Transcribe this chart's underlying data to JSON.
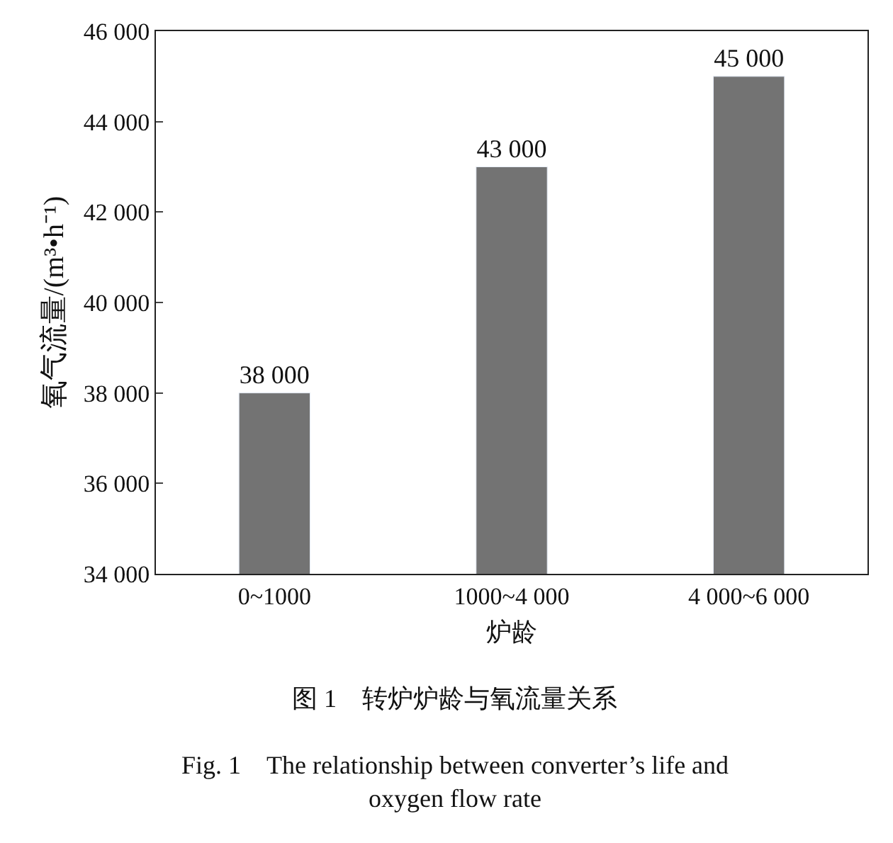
{
  "chart_data": {
    "type": "bar",
    "xlabel": "炉龄",
    "ylabel": "氧气流量/(m³•h⁻¹)",
    "categories": [
      "0~1000",
      "1000~4 000",
      "4 000~6 000"
    ],
    "values": [
      38000,
      43000,
      45000
    ],
    "color": "#737373",
    "value_labels": [
      "38 000",
      "43 000",
      "45 000"
    ],
    "ylim": [
      34000,
      46000
    ],
    "yticks": [
      {
        "value": 34000,
        "label": "34 000"
      },
      {
        "value": 36000,
        "label": "36 000"
      },
      {
        "value": 38000,
        "label": "38 000"
      },
      {
        "value": 40000,
        "label": "40 000"
      },
      {
        "value": 42000,
        "label": "42 000"
      },
      {
        "value": 44000,
        "label": "44 000"
      },
      {
        "value": 46000,
        "label": "46 000"
      }
    ],
    "annotations": [
      "图 1　转炉炉龄与氧流量关系",
      "Fig. 1　The relationship between converter’s life and oxygen flow rate"
    ]
  }
}
